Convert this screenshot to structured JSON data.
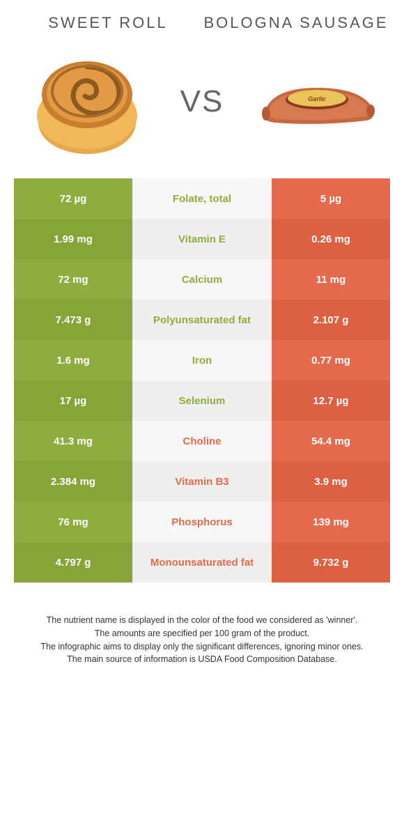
{
  "colors": {
    "left_food": "#8fad3e",
    "right_food": "#e36a4d",
    "left_alt": "#97b446",
    "left_alt2": "#86a437",
    "right_alt": "#e8745a",
    "right_alt2": "#de6042",
    "mid_bg1": "#f7f7f5",
    "mid_bg2": "#efefed",
    "title_color": "#555555",
    "vs_color": "#666666",
    "foot_color": "#333333"
  },
  "header": {
    "left_title": "Sweet roll",
    "right_title": "Bologna sausage",
    "vs": "VS"
  },
  "rows": [
    {
      "left": "72 µg",
      "mid": "Folate, total",
      "right": "5 µg",
      "winner": "left"
    },
    {
      "left": "1.99 mg",
      "mid": "Vitamin E",
      "right": "0.26 mg",
      "winner": "left"
    },
    {
      "left": "72 mg",
      "mid": "Calcium",
      "right": "11 mg",
      "winner": "left"
    },
    {
      "left": "7.473 g",
      "mid": "Polyunsaturated fat",
      "right": "2.107 g",
      "winner": "left"
    },
    {
      "left": "1.6 mg",
      "mid": "Iron",
      "right": "0.77 mg",
      "winner": "left"
    },
    {
      "left": "17 µg",
      "mid": "Selenium",
      "right": "12.7 µg",
      "winner": "left"
    },
    {
      "left": "41.3 mg",
      "mid": "Choline",
      "right": "54.4 mg",
      "winner": "right"
    },
    {
      "left": "2.384 mg",
      "mid": "Vitamin B3",
      "right": "3.9 mg",
      "winner": "right"
    },
    {
      "left": "76 mg",
      "mid": "Phosphorus",
      "right": "139 mg",
      "winner": "right"
    },
    {
      "left": "4.797 g",
      "mid": "Monounsaturated fat",
      "right": "9.732 g",
      "winner": "right"
    }
  ],
  "footnotes": [
    "The nutrient name is displayed in the color of the food we considered as 'winner'.",
    "The amounts are specified per 100 gram of the product.",
    "The infographic aims to display only the significant differences, ignoring minor ones.",
    "The main source of information is USDA Food Composition Database."
  ]
}
